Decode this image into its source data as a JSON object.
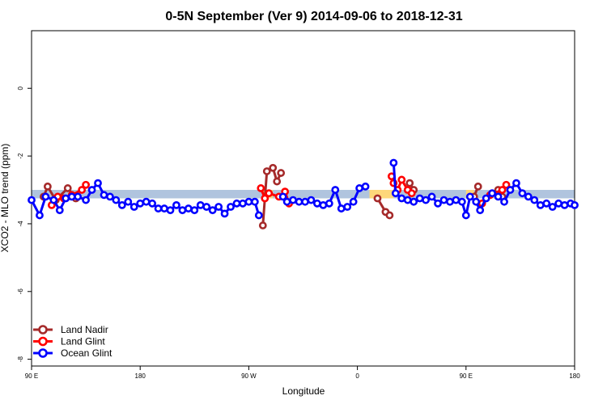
{
  "chart_data": {
    "type": "line",
    "title": "0-5N September (Ver 9)   2014-09-06 to 2018-12-31",
    "xlabel": "Longitude",
    "ylabel": "XCO2 - MLO trend (ppm)",
    "xlim": [
      -90,
      180
    ],
    "ylim": [
      -8.2,
      1.7
    ],
    "x_ticks": [
      {
        "value": -90,
        "label": "90 E"
      },
      {
        "value": -36,
        "label": "180"
      },
      {
        "value": 18,
        "label": "90 W"
      },
      {
        "value": 72,
        "label": "0"
      },
      {
        "value": 126,
        "label": "90 E"
      },
      {
        "value": 180,
        "label": "180"
      }
    ],
    "y_ticks": [
      {
        "value": 0,
        "label": "0"
      },
      {
        "value": -2,
        "label": "-2"
      },
      {
        "value": -4,
        "label": "-4"
      },
      {
        "value": -6,
        "label": "-6"
      },
      {
        "value": -8,
        "label": "-8"
      }
    ],
    "bands": [
      {
        "name": "blue-band",
        "x": [
          -90,
          180
        ],
        "y": [
          -3.25,
          -3.0
        ],
        "color": "#b0c4de"
      },
      {
        "name": "orange-band-1",
        "x": [
          25,
          30
        ],
        "y": [
          -3.25,
          -3.0
        ],
        "color": "#fed77a"
      },
      {
        "name": "orange-band-2",
        "x": [
          78,
          90
        ],
        "y": [
          -3.25,
          -3.0
        ],
        "color": "#fed77a"
      },
      {
        "name": "orange-band-3",
        "x": [
          126,
          130
        ],
        "y": [
          -3.25,
          -3.0
        ],
        "color": "#fed77a"
      }
    ],
    "legend": {
      "position": "bottom-left"
    },
    "series": [
      {
        "name": "Land Nadir",
        "color": "#a52a2a",
        "segments": [
          {
            "x": [
              -84,
              -82,
              -78,
              -72,
              -68
            ],
            "y": [
              -3.2,
              -2.9,
              -3.3,
              -2.95,
              -3.25
            ]
          },
          {
            "x": [
              25,
              27,
              30,
              32,
              34
            ],
            "y": [
              -4.05,
              -2.45,
              -2.35,
              -2.75,
              -2.5
            ]
          },
          {
            "x": [
              82,
              86,
              88
            ],
            "y": [
              -3.25,
              -3.65,
              -3.75
            ]
          },
          {
            "x": [
              98,
              100
            ],
            "y": [
              -2.8,
              -3.0
            ]
          },
          {
            "x": [
              130,
              132
            ],
            "y": [
              -3.2,
              -2.9
            ]
          },
          {
            "x": [
              142,
              144
            ],
            "y": [
              -3.0,
              -3.2
            ]
          }
        ]
      },
      {
        "name": "Land Glint",
        "color": "#ff0000",
        "segments": [
          {
            "x": [
              -80,
              -77,
              -74,
              -70,
              -65,
              -63
            ],
            "y": [
              -3.45,
              -3.2,
              -3.25,
              -3.15,
              -3.0,
              -2.85
            ]
          },
          {
            "x": [
              24,
              26,
              28,
              33,
              36,
              38
            ],
            "y": [
              -2.95,
              -3.25,
              -3.1,
              -3.2,
              -3.05,
              -3.4
            ]
          },
          {
            "x": [
              89,
              90,
              92,
              94,
              97,
              99
            ],
            "y": [
              -2.6,
              -2.8,
              -3.0,
              -2.7,
              -3.0,
              -3.1
            ]
          },
          {
            "x": [
              134,
              138,
              144,
              146
            ],
            "y": [
              -3.4,
              -3.15,
              -3.0,
              -2.85
            ]
          }
        ]
      },
      {
        "name": "Ocean Glint",
        "color": "#0000ff",
        "segments": [
          {
            "x": [
              -90,
              -86,
              -83,
              -79,
              -76,
              -73,
              -70,
              -67,
              -63,
              -60,
              -57,
              -54,
              -51,
              -48,
              -45,
              -42,
              -39,
              -36,
              -33,
              -30,
              -27,
              -24,
              -21,
              -18,
              -15,
              -12,
              -9,
              -6,
              -3,
              0,
              3,
              6,
              9,
              12,
              15,
              18,
              21,
              23
            ],
            "y": [
              -3.3,
              -3.75,
              -3.2,
              -3.3,
              -3.6,
              -3.25,
              -3.2,
              -3.2,
              -3.3,
              -3.0,
              -2.8,
              -3.15,
              -3.2,
              -3.3,
              -3.45,
              -3.35,
              -3.5,
              -3.4,
              -3.35,
              -3.4,
              -3.55,
              -3.55,
              -3.6,
              -3.45,
              -3.6,
              -3.55,
              -3.6,
              -3.45,
              -3.5,
              -3.6,
              -3.5,
              -3.7,
              -3.5,
              -3.4,
              -3.4,
              -3.35,
              -3.35,
              -3.75
            ]
          },
          {
            "x": [
              35,
              37,
              40,
              43,
              46,
              49,
              52,
              55,
              58,
              61,
              64,
              67,
              70,
              73,
              76
            ],
            "y": [
              -3.2,
              -3.35,
              -3.3,
              -3.35,
              -3.35,
              -3.3,
              -3.4,
              -3.45,
              -3.4,
              -3.0,
              -3.55,
              -3.5,
              -3.35,
              -2.95,
              -2.9
            ]
          },
          {
            "x": [
              90,
              91,
              94,
              97,
              100,
              103,
              106,
              109,
              112,
              115,
              118,
              121,
              124,
              126,
              128,
              131,
              133,
              136,
              139,
              142,
              145,
              148,
              151,
              154,
              157,
              160,
              163,
              166,
              169,
              172,
              175,
              178,
              180
            ],
            "y": [
              -2.2,
              -3.1,
              -3.25,
              -3.3,
              -3.35,
              -3.25,
              -3.3,
              -3.2,
              -3.4,
              -3.3,
              -3.35,
              -3.3,
              -3.35,
              -3.75,
              -3.2,
              -3.35,
              -3.6,
              -3.25,
              -3.1,
              -3.2,
              -3.35,
              -3.0,
              -2.8,
              -3.1,
              -3.2,
              -3.3,
              -3.45,
              -3.4,
              -3.5,
              -3.4,
              -3.45,
              -3.4,
              -3.45
            ]
          }
        ]
      }
    ]
  }
}
